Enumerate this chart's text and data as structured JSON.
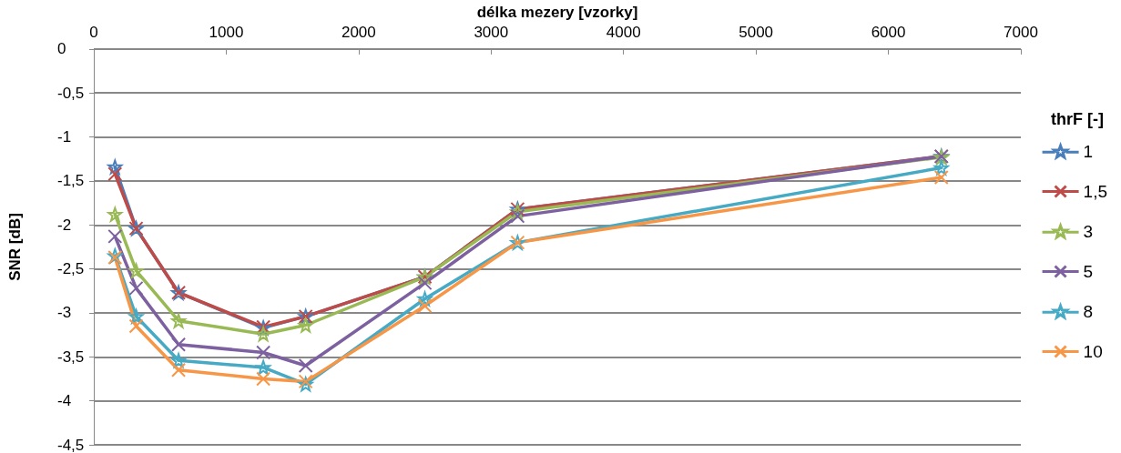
{
  "chart_data": {
    "type": "line",
    "xlabel": "délka mezery [vzorky]",
    "ylabel": "SNR [dB]",
    "legend_title": "thrF [-]",
    "x": [
      160,
      320,
      640,
      1280,
      1600,
      2500,
      3200,
      6400
    ],
    "xlim": [
      0,
      7000
    ],
    "xticks": [
      0,
      1000,
      2000,
      3000,
      4000,
      5000,
      6000,
      7000
    ],
    "ylim": [
      -4.5,
      0
    ],
    "yticks": [
      {
        "value": -4.5,
        "label": "-4,5"
      },
      {
        "value": -4,
        "label": "-4"
      },
      {
        "value": -3.5,
        "label": "-3,5"
      },
      {
        "value": -3,
        "label": "-3"
      },
      {
        "value": -2.5,
        "label": "-2,5"
      },
      {
        "value": -2,
        "label": "-2"
      },
      {
        "value": -1.5,
        "label": "-1,5"
      },
      {
        "value": -1,
        "label": "-1"
      },
      {
        "value": -0.5,
        "label": "-0,5"
      },
      {
        "value": 0,
        "label": "0"
      }
    ],
    "grid": "y",
    "legend": "right",
    "line_style": "solid",
    "series": [
      {
        "name": "1",
        "color": "#4a7ebb",
        "marker": "star",
        "values": [
          -1.34,
          -2.04,
          -2.77,
          -3.17,
          -3.04,
          -2.59,
          -1.82,
          -1.22
        ]
      },
      {
        "name": "1,5",
        "color": "#be4b48",
        "marker": "cross",
        "values": [
          -1.42,
          -2.04,
          -2.77,
          -3.16,
          -3.04,
          -2.59,
          -1.82,
          -1.22
        ]
      },
      {
        "name": "3",
        "color": "#98b954",
        "marker": "star",
        "values": [
          -1.88,
          -2.52,
          -3.09,
          -3.24,
          -3.14,
          -2.59,
          -1.85,
          -1.23
        ]
      },
      {
        "name": "5",
        "color": "#7d60a0",
        "marker": "cross",
        "values": [
          -2.13,
          -2.72,
          -3.36,
          -3.45,
          -3.6,
          -2.66,
          -1.9,
          -1.22
        ]
      },
      {
        "name": "8",
        "color": "#46aac5",
        "marker": "star",
        "values": [
          -2.35,
          -3.04,
          -3.54,
          -3.62,
          -3.81,
          -2.84,
          -2.2,
          -1.35
        ]
      },
      {
        "name": "10",
        "color": "#f79646",
        "marker": "cross",
        "values": [
          -2.37,
          -3.15,
          -3.65,
          -3.75,
          -3.78,
          -2.92,
          -2.2,
          -1.46
        ]
      }
    ]
  }
}
